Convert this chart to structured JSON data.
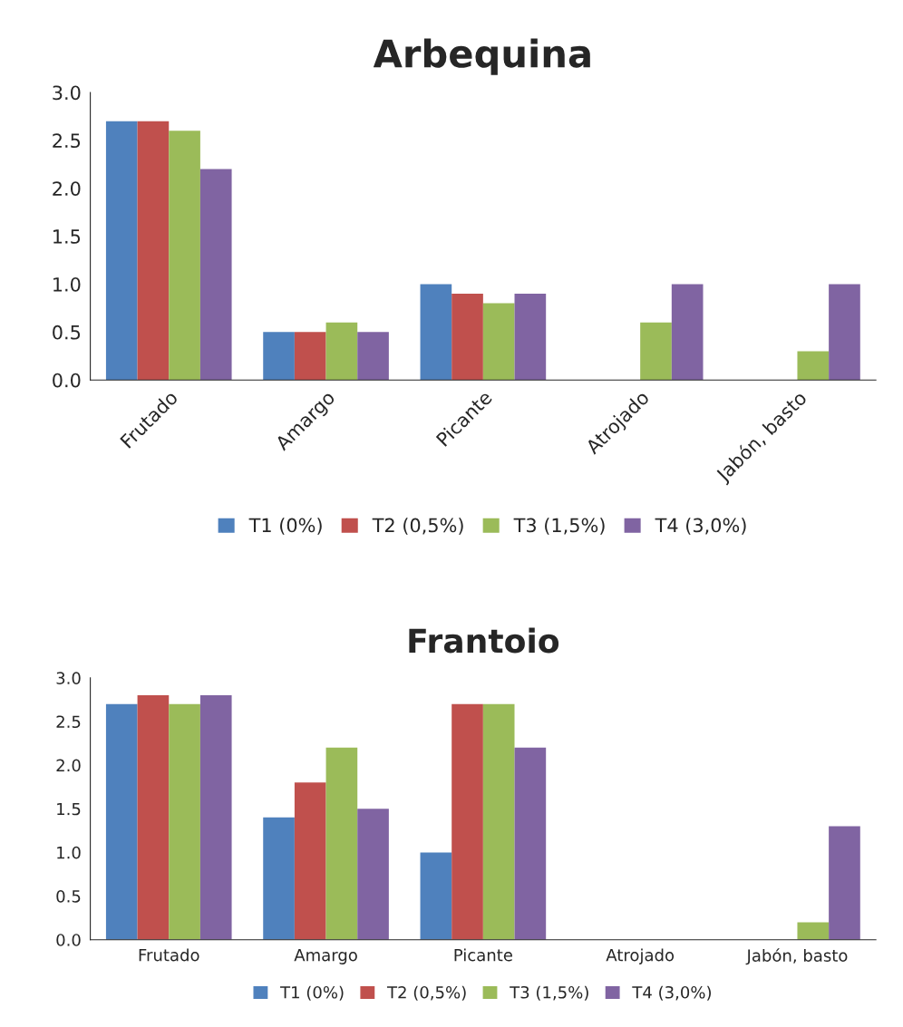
{
  "chart_data": [
    {
      "type": "bar",
      "title": "Arbequina",
      "categories": [
        "Frutado",
        "Amargo",
        "Picante",
        "Atrojado",
        "Jabón, basto"
      ],
      "series": [
        {
          "name": "T1 (0%)",
          "color": "#4f81bd",
          "values": [
            2.7,
            0.5,
            1.0,
            0,
            0
          ]
        },
        {
          "name": "T2 (0,5%)",
          "color": "#c0504d",
          "values": [
            2.7,
            0.5,
            0.9,
            0,
            0
          ]
        },
        {
          "name": "T3 (1,5%)",
          "color": "#9bbb59",
          "values": [
            2.6,
            0.6,
            0.8,
            0.6,
            0.3
          ]
        },
        {
          "name": "T4 (3,0%)",
          "color": "#8064a2",
          "values": [
            2.2,
            0.5,
            0.9,
            1.0,
            1.0
          ]
        }
      ],
      "ylim": [
        0,
        3
      ],
      "yticks": [
        {
          "value": 0,
          "label": "0.0"
        },
        {
          "value": 0.5,
          "label": "0.5"
        },
        {
          "value": 1,
          "label": "1.0"
        },
        {
          "value": 1.5,
          "label": "1.5"
        },
        {
          "value": 2,
          "label": "2.0"
        },
        {
          "value": 2.5,
          "label": "2.5"
        },
        {
          "value": 3,
          "label": "3.0"
        }
      ],
      "grid": false,
      "legend": "bottom"
    },
    {
      "type": "bar",
      "title": "Frantoio",
      "categories": [
        "Frutado",
        "Amargo",
        "Picante",
        "Atrojado",
        "Jabón, basto"
      ],
      "series": [
        {
          "name": "T1 (0%)",
          "color": "#4f81bd",
          "values": [
            2.7,
            1.4,
            1.0,
            0,
            0
          ]
        },
        {
          "name": "T2 (0,5%)",
          "color": "#c0504d",
          "values": [
            2.8,
            1.8,
            2.7,
            0,
            0
          ]
        },
        {
          "name": "T3 (1,5%)",
          "color": "#9bbb59",
          "values": [
            2.7,
            2.2,
            2.7,
            0,
            0.2
          ]
        },
        {
          "name": "T4 (3,0%)",
          "color": "#8064a2",
          "values": [
            2.8,
            1.5,
            2.2,
            0,
            1.3
          ]
        }
      ],
      "ylim": [
        0,
        3
      ],
      "yticks": [
        {
          "value": 0,
          "label": "0.0"
        },
        {
          "value": 0.5,
          "label": "0.5"
        },
        {
          "value": 1,
          "label": "1.0"
        },
        {
          "value": 1.5,
          "label": "1.5"
        },
        {
          "value": 2,
          "label": "2.0"
        },
        {
          "value": 2.5,
          "label": "2.5"
        },
        {
          "value": 3,
          "label": "3.0"
        }
      ],
      "grid": false,
      "legend": "bottom"
    }
  ]
}
